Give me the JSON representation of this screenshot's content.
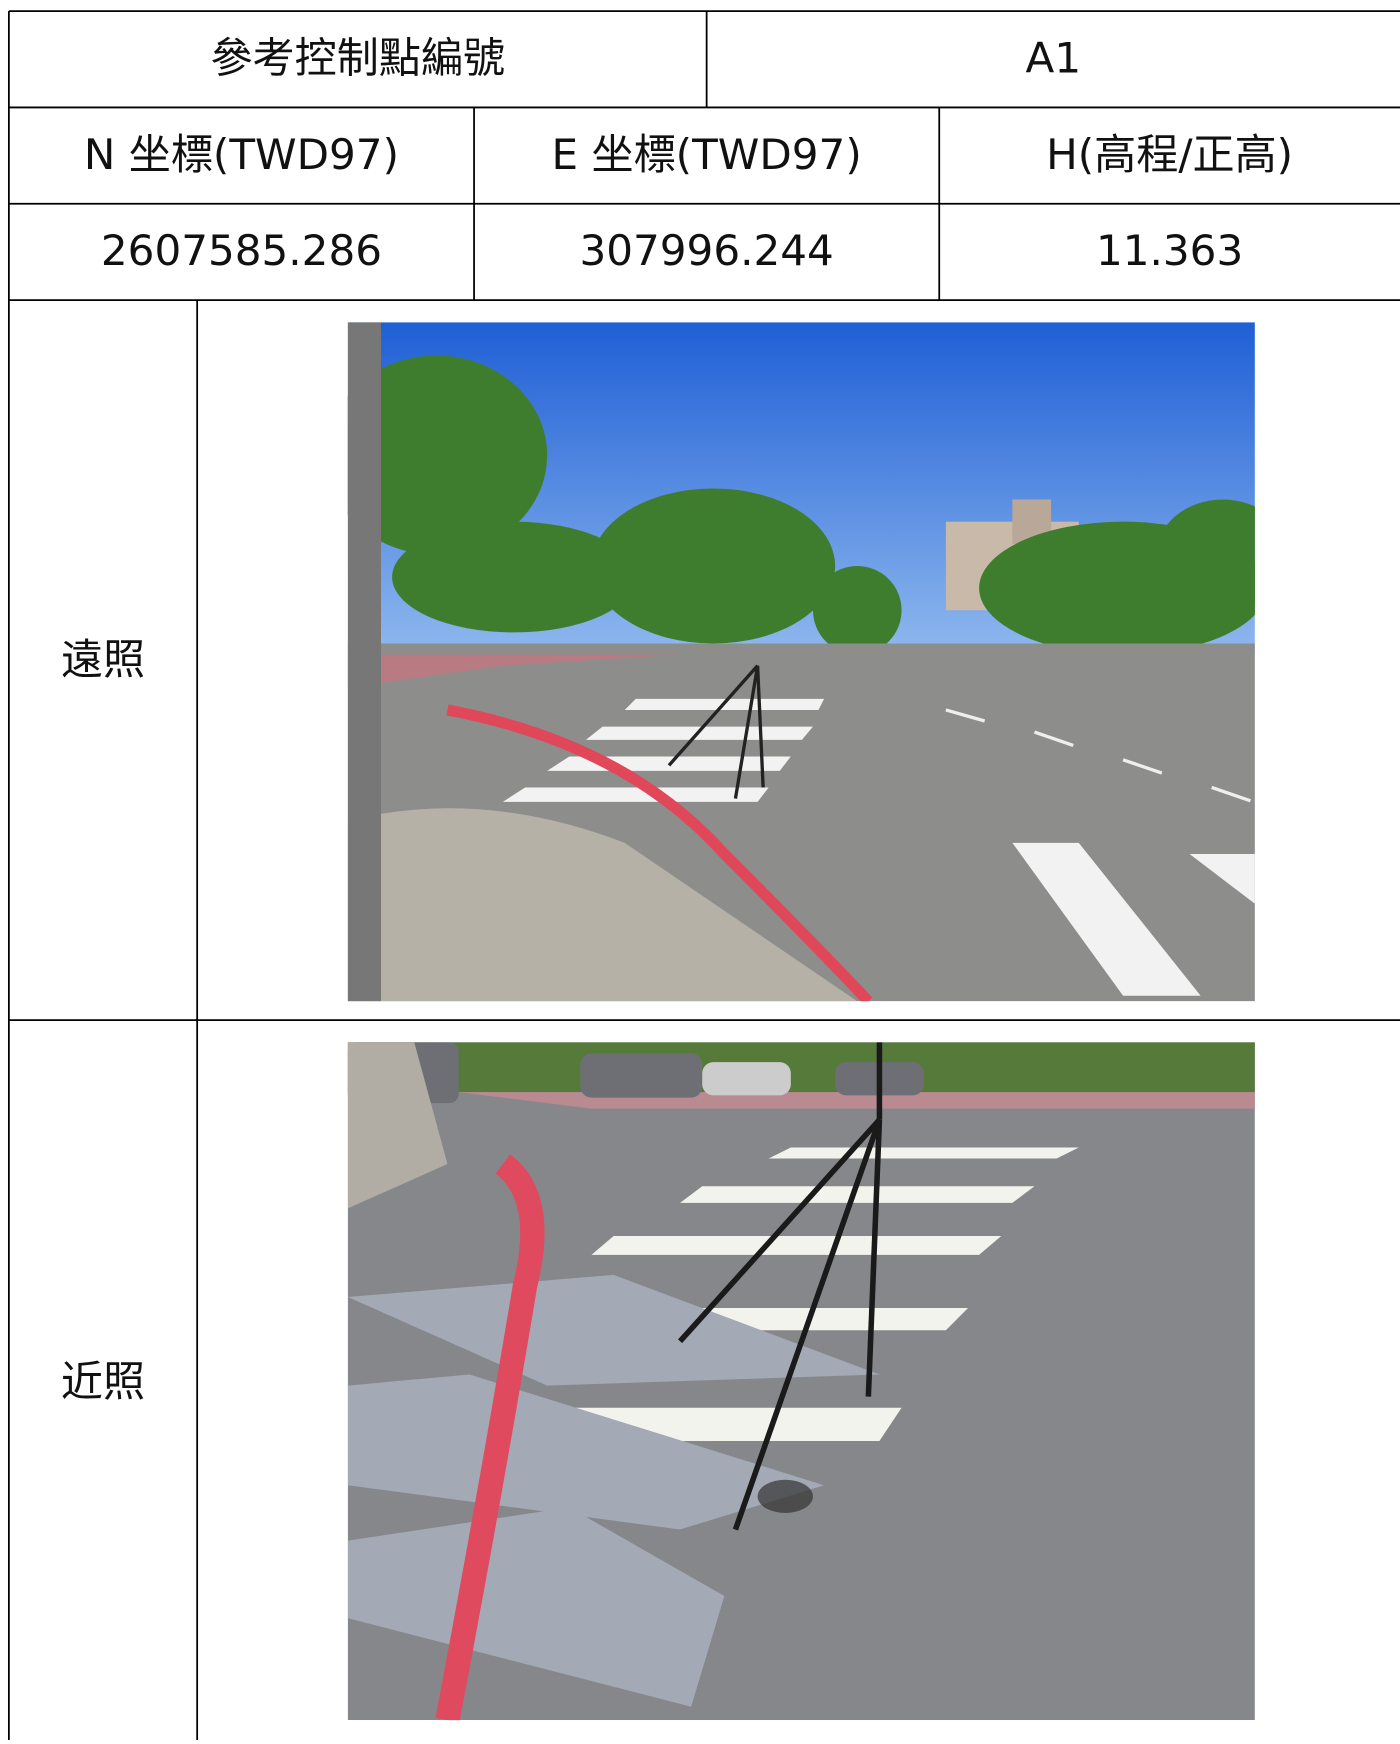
{
  "table": {
    "title_label": "參考控制點編號",
    "title_value": "A1",
    "headers": [
      "N 坐標(TWD97)",
      "E 坐標(TWD97)",
      "H(高程/正高)"
    ],
    "values": [
      "2607585.286",
      "307996.244",
      "11.363"
    ],
    "photo_labels": [
      "遠照",
      "近照"
    ]
  }
}
